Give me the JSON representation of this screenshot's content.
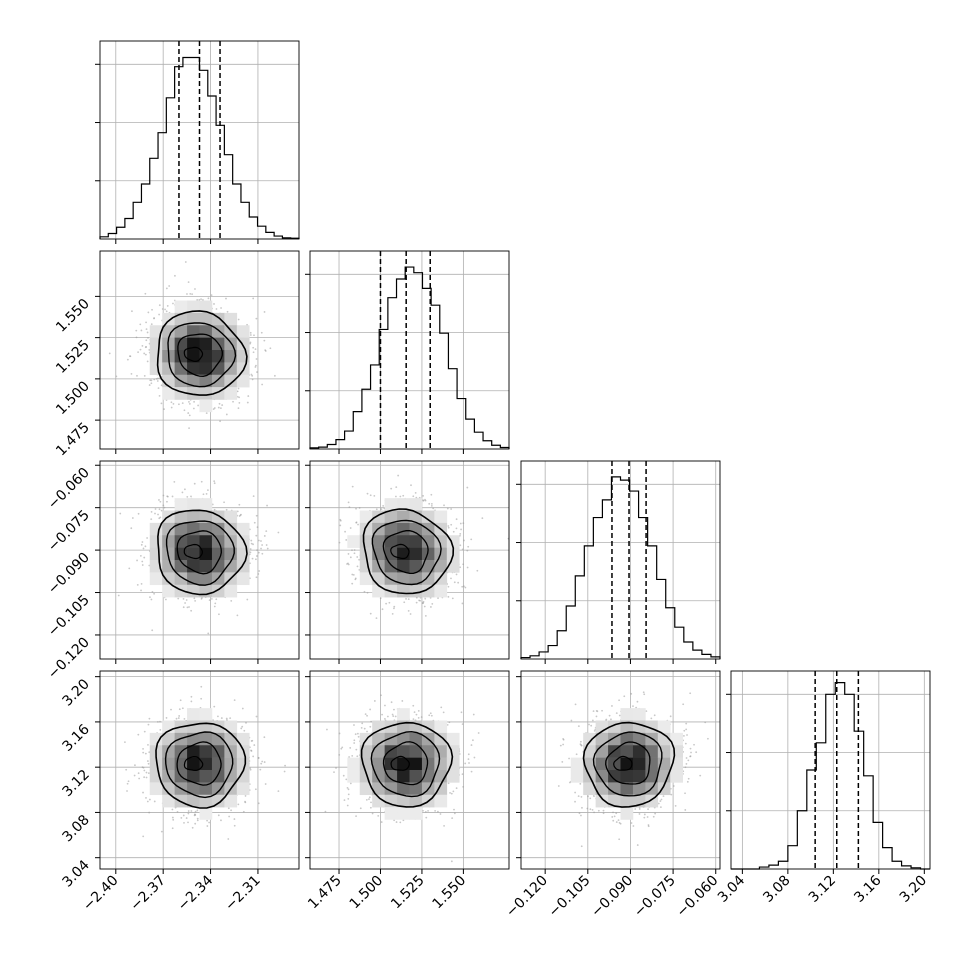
{
  "chart_data": {
    "type": "corner",
    "grid": true,
    "variables": [
      {
        "range": [
          -2.41,
          -2.284
        ],
        "ticks": [
          -2.4,
          -2.37,
          -2.34,
          -2.31
        ],
        "tick_labels": [
          "−2.40",
          "−2.37",
          "−2.34",
          "−2.31"
        ],
        "quantiles": [
          -2.36,
          -2.347,
          -2.334
        ],
        "hist": [
          0.6,
          1.5,
          3.2,
          5.6,
          10,
          15,
          22,
          29,
          38.5,
          47,
          49.5,
          49.5,
          46,
          39,
          31,
          23,
          15,
          10,
          6,
          3.5,
          1.8,
          0.8,
          0.3,
          0.2
        ],
        "hist_ymax": 54
      },
      {
        "range": [
          1.4575,
          1.5775
        ],
        "ticks": [
          1.475,
          1.5,
          1.525,
          1.55
        ],
        "tick_labels": [
          "1.475",
          "1.500",
          "1.525",
          "1.550"
        ],
        "quantiles": [
          1.5,
          1.5155,
          1.53
        ],
        "hist": [
          0.3,
          0.5,
          1.2,
          2.5,
          4.8,
          10,
          16,
          22.5,
          32,
          40.5,
          45.5,
          48.7,
          47.2,
          43,
          38.5,
          31,
          21.5,
          13.5,
          8,
          4.5,
          2.2,
          1,
          0.4
        ],
        "hist_ymax": 53
      },
      {
        "range": [
          -0.1285,
          -0.0585
        ],
        "ticks": [
          -0.12,
          -0.105,
          -0.09,
          -0.075,
          -0.06
        ],
        "tick_labels": [
          "−0.120",
          "−0.105",
          "−0.090",
          "−0.075",
          "−0.060"
        ],
        "quantiles": [
          -0.0965,
          -0.0905,
          -0.0845
        ],
        "hist": [
          0.4,
          0.9,
          2,
          3.8,
          8,
          15,
          23.5,
          32,
          40,
          45,
          51.5,
          50.6,
          47.5,
          40,
          32,
          22.5,
          14.5,
          9,
          4.8,
          2.5,
          1.3,
          0.6
        ],
        "hist_ymax": 56
      },
      {
        "range": [
          3.03,
          3.205
        ],
        "ticks": [
          3.04,
          3.08,
          3.12,
          3.16,
          3.2
        ],
        "tick_labels": [
          "3.04",
          "3.08",
          "3.12",
          "3.16",
          "3.20"
        ],
        "quantiles": [
          3.104,
          3.123,
          3.142
        ],
        "hist": [
          0,
          0,
          0,
          0.5,
          1,
          2,
          6,
          15,
          25.5,
          32.5,
          45,
          48,
          45,
          35.5,
          24,
          12,
          5.5,
          2,
          0.8,
          0.3,
          0
        ],
        "hist_ymax": 51
      }
    ],
    "pairs": [
      {
        "row": 1,
        "col": 0,
        "center": [
          -2.347,
          1.515
        ],
        "corr": 0.05
      },
      {
        "row": 2,
        "col": 0,
        "center": [
          -2.347,
          -0.0905
        ],
        "corr": 0.05
      },
      {
        "row": 2,
        "col": 1,
        "center": [
          1.5155,
          -0.0905
        ],
        "corr": 0.08
      },
      {
        "row": 3,
        "col": 0,
        "center": [
          -2.347,
          3.123
        ],
        "corr": 0.0
      },
      {
        "row": 3,
        "col": 1,
        "center": [
          1.5155,
          3.123
        ],
        "corr": 0.0
      },
      {
        "row": 3,
        "col": 2,
        "center": [
          -0.0905,
          3.123
        ],
        "corr": -0.03
      }
    ]
  }
}
